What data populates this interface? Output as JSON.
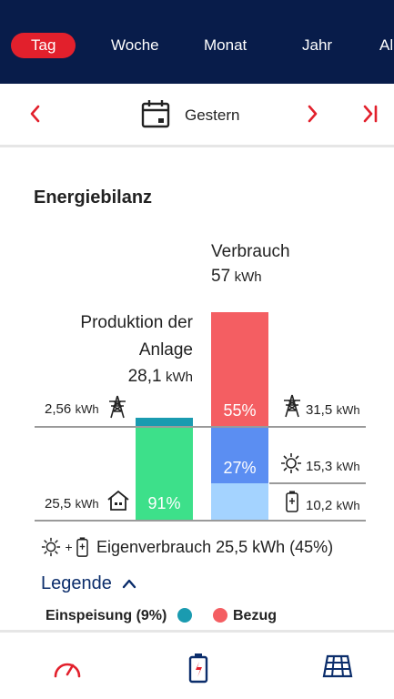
{
  "tabs": {
    "day": "Tag",
    "week": "Woche",
    "month": "Monat",
    "year": "Jahr",
    "all": "Al"
  },
  "date_nav": {
    "label": "Gestern",
    "prev": "‹",
    "next": "›",
    "last": "›|"
  },
  "section": {
    "title": "Energiebilanz"
  },
  "consumption": {
    "heading": "Verbrauch",
    "value": "57",
    "unit": "kWh"
  },
  "production": {
    "heading_line1": "Produktion der",
    "heading_line2": "Anlage",
    "value": "28,1",
    "unit": "kWh"
  },
  "left_rows": {
    "grid_feed": {
      "value": "2,56",
      "unit": "kWh"
    },
    "home": {
      "value": "25,5",
      "unit": "kWh"
    }
  },
  "right_rows": {
    "grid": {
      "value": "31,5",
      "unit": "kWh"
    },
    "solar": {
      "value": "15,3",
      "unit": "kWh"
    },
    "battery": {
      "value": "10,2",
      "unit": "kWh"
    }
  },
  "bars": {
    "production_self_pct": "91%",
    "consumption_grid_pct": "55%",
    "consumption_solar_pct": "27%",
    "production_self_fraction": 0.91,
    "production_feed_fraction": 0.09,
    "consumption_grid_fraction": 0.55,
    "consumption_solar_fraction": 0.27,
    "consumption_battery_fraction": 0.18
  },
  "self_consumption": {
    "label": "Eigenverbrauch 25,5 kWh (45%)"
  },
  "legend": {
    "title": "Legende",
    "items": [
      {
        "label": "Einspeisung (9%)",
        "color": "#1a9bb0"
      },
      {
        "label": "Bezug",
        "color": "#f45e62"
      }
    ]
  },
  "colors": {
    "header_bg": "#081c4a",
    "accent": "#e2202c",
    "self_use": "#3de08a",
    "feed_in": "#1a9bb0",
    "grid_draw": "#f45e62",
    "solar_use": "#5b8ef2",
    "battery_use": "#a4d3ff"
  },
  "icons": [
    "calendar-icon",
    "pylon-icon",
    "house-icon",
    "sun-icon",
    "battery-icon",
    "gauge-icon",
    "battery-charge-icon",
    "solar-panel-icon"
  ]
}
